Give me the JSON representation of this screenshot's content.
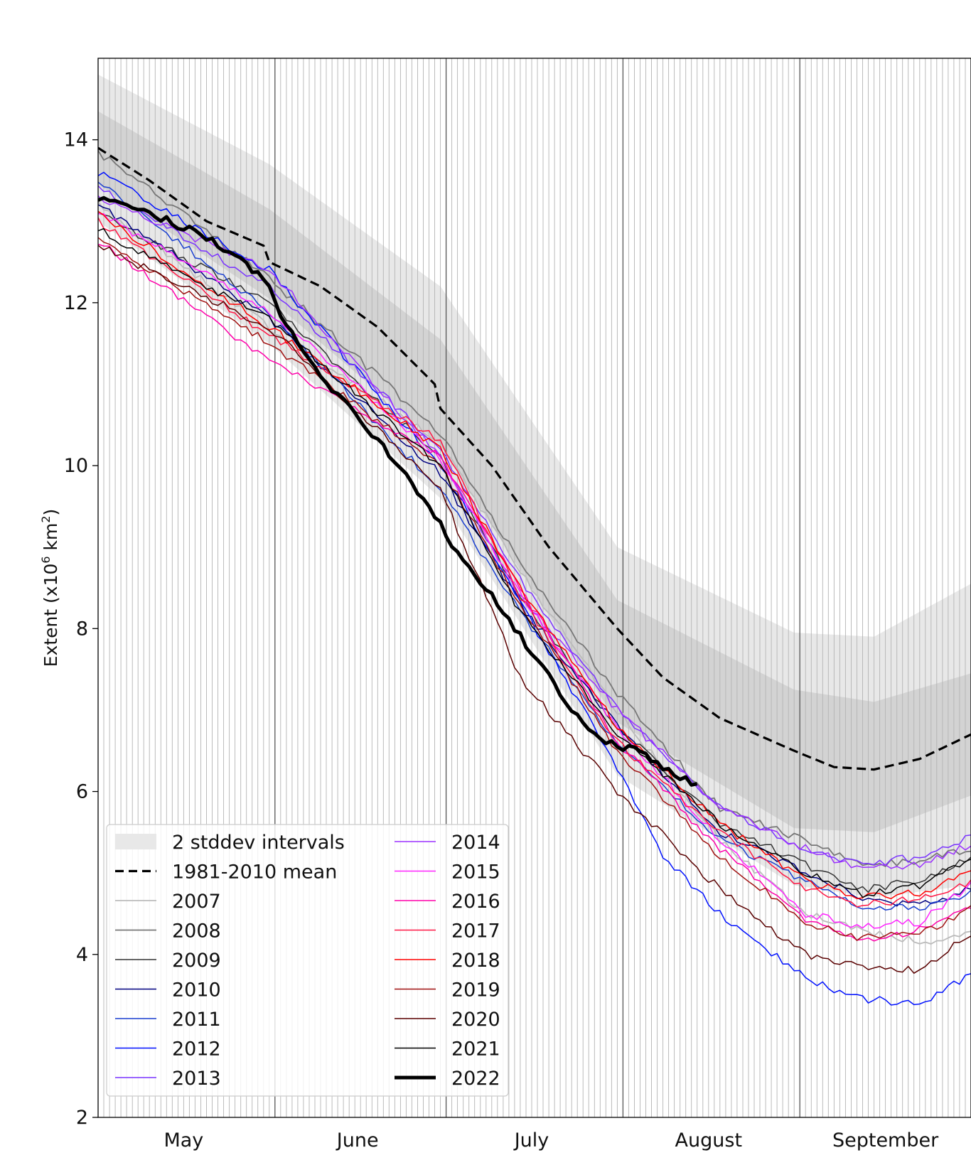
{
  "chart_data": {
    "type": "line",
    "ylabel": "Extent (x10",
    "ylabel_sup": "6",
    "ylabel_unit": " km",
    "ylabel_unit_sup": "2",
    "ylabel_close": ")",
    "ylim": [
      2,
      15
    ],
    "yticks": [
      "2",
      "4",
      "6",
      "8",
      "10",
      "12",
      "14"
    ],
    "xlim_day": [
      1,
      154
    ],
    "months": [
      {
        "label": "May",
        "start_day": 1,
        "end_day": 31
      },
      {
        "label": "June",
        "start_day": 32,
        "end_day": 61
      },
      {
        "label": "July",
        "start_day": 62,
        "end_day": 92
      },
      {
        "label": "August",
        "start_day": 93,
        "end_day": 123
      },
      {
        "label": "September",
        "start_day": 124,
        "end_day": 154
      }
    ],
    "grid": "daily vertical lines, darker lines at month boundaries",
    "legend_position": "lower-left",
    "envelope": {
      "name": "2 stddev intervals",
      "x": [
        1,
        31,
        61,
        92,
        123,
        137,
        154
      ],
      "mean": [
        13.9,
        12.6,
        10.9,
        7.6,
        6.4,
        6.3,
        6.7
      ],
      "inner_half": [
        0.45,
        0.55,
        0.65,
        0.75,
        0.85,
        0.8,
        0.75
      ],
      "outer_half": [
        0.9,
        1.1,
        1.3,
        1.4,
        1.55,
        1.6,
        1.85
      ],
      "inner_color": "#d3d3d3",
      "outer_color": "#e8e8e8"
    },
    "series": [
      {
        "name": "1981-2010 mean",
        "color": "#000000",
        "style": "dashed",
        "width": 3.2,
        "x": [
          1,
          10,
          20,
          30,
          31,
          40,
          50,
          60,
          61,
          70,
          80,
          92,
          100,
          110,
          123,
          130,
          137,
          145,
          154
        ],
        "y": [
          13.9,
          13.5,
          13.0,
          12.7,
          12.5,
          12.2,
          11.7,
          11.0,
          10.7,
          10.0,
          9.0,
          8.0,
          7.4,
          6.9,
          6.5,
          6.3,
          6.27,
          6.4,
          6.7
        ]
      },
      {
        "name": "2007",
        "color": "#bbbbbb",
        "width": 1.8,
        "x": [
          1,
          31,
          61,
          75,
          92,
          110,
          125,
          135,
          145,
          154
        ],
        "y": [
          13.2,
          11.7,
          10.3,
          8.7,
          7.0,
          5.4,
          4.5,
          4.3,
          4.15,
          4.25
        ]
      },
      {
        "name": "2008",
        "color": "#777777",
        "width": 1.8,
        "x": [
          1,
          31,
          61,
          75,
          92,
          110,
          125,
          135,
          145,
          154
        ],
        "y": [
          13.85,
          12.3,
          10.4,
          8.8,
          7.2,
          5.8,
          5.4,
          5.1,
          5.15,
          5.3
        ]
      },
      {
        "name": "2009",
        "color": "#333333",
        "width": 1.5,
        "x": [
          1,
          31,
          61,
          75,
          92,
          110,
          125,
          135,
          145,
          154
        ],
        "y": [
          13.1,
          12.0,
          10.1,
          8.4,
          6.8,
          5.6,
          5.1,
          4.8,
          4.9,
          5.2
        ]
      },
      {
        "name": "2010",
        "color": "#000080",
        "width": 1.5,
        "x": [
          1,
          31,
          61,
          75,
          92,
          110,
          125,
          135,
          145,
          154
        ],
        "y": [
          13.2,
          11.8,
          9.9,
          8.3,
          6.8,
          5.5,
          5.0,
          4.7,
          4.6,
          4.8
        ]
      },
      {
        "name": "2011",
        "color": "#1a3fd0",
        "width": 1.5,
        "x": [
          1,
          31,
          61,
          75,
          92,
          110,
          125,
          135,
          145,
          154
        ],
        "y": [
          13.5,
          11.9,
          9.7,
          8.2,
          6.6,
          5.4,
          4.9,
          4.6,
          4.55,
          4.75
        ]
      },
      {
        "name": "2012",
        "color": "#0010ff",
        "width": 1.5,
        "x": [
          1,
          31,
          61,
          75,
          92,
          100,
          110,
          125,
          135,
          145,
          154
        ],
        "y": [
          13.6,
          12.4,
          10.0,
          8.3,
          6.3,
          5.2,
          4.5,
          3.7,
          3.45,
          3.4,
          3.75
        ]
      },
      {
        "name": "2013",
        "color": "#7a33ff",
        "width": 1.5,
        "x": [
          1,
          31,
          61,
          75,
          92,
          110,
          125,
          135,
          145,
          154
        ],
        "y": [
          13.4,
          12.2,
          10.2,
          8.6,
          7.0,
          5.8,
          5.3,
          5.1,
          5.2,
          5.45
        ]
      },
      {
        "name": "2014",
        "color": "#9b30ff",
        "width": 1.5,
        "x": [
          1,
          31,
          61,
          75,
          92,
          110,
          125,
          135,
          145,
          154
        ],
        "y": [
          13.3,
          12.4,
          10.1,
          8.4,
          7.0,
          5.8,
          5.3,
          5.05,
          5.1,
          5.35
        ]
      },
      {
        "name": "2015",
        "color": "#ff22ff",
        "width": 1.5,
        "x": [
          1,
          31,
          61,
          75,
          92,
          110,
          125,
          135,
          145,
          154
        ],
        "y": [
          13.1,
          11.9,
          10.1,
          8.4,
          6.8,
          5.4,
          4.5,
          4.35,
          4.4,
          4.85
        ]
      },
      {
        "name": "2016",
        "color": "#ff00aa",
        "width": 1.5,
        "x": [
          1,
          31,
          61,
          75,
          92,
          110,
          125,
          135,
          145,
          154
        ],
        "y": [
          12.75,
          11.3,
          10.1,
          8.5,
          6.6,
          5.3,
          4.4,
          4.15,
          4.3,
          4.6
        ]
      },
      {
        "name": "2017",
        "color": "#ff1744",
        "width": 1.5,
        "x": [
          1,
          31,
          61,
          75,
          92,
          110,
          125,
          135,
          145,
          154
        ],
        "y": [
          13.0,
          11.6,
          10.3,
          8.4,
          6.6,
          5.5,
          4.8,
          4.6,
          4.7,
          4.9
        ]
      },
      {
        "name": "2018",
        "color": "#ff0000",
        "width": 1.5,
        "x": [
          1,
          31,
          61,
          75,
          92,
          110,
          125,
          135,
          145,
          154
        ],
        "y": [
          13.1,
          11.7,
          10.2,
          8.5,
          6.8,
          5.6,
          4.9,
          4.7,
          4.75,
          5.0
        ]
      },
      {
        "name": "2019",
        "color": "#a01010",
        "width": 1.5,
        "x": [
          1,
          31,
          61,
          75,
          92,
          110,
          125,
          135,
          145,
          154
        ],
        "y": [
          12.8,
          11.5,
          10.0,
          8.3,
          6.5,
          5.2,
          4.4,
          4.2,
          4.25,
          4.55
        ]
      },
      {
        "name": "2020",
        "color": "#5a0000",
        "width": 1.5,
        "x": [
          1,
          31,
          61,
          75,
          92,
          110,
          125,
          135,
          145,
          154
        ],
        "y": [
          12.7,
          11.7,
          9.7,
          7.4,
          6.0,
          4.8,
          4.0,
          3.85,
          3.8,
          4.25
        ]
      },
      {
        "name": "2021",
        "color": "#000000",
        "width": 1.5,
        "x": [
          1,
          31,
          61,
          75,
          92,
          110,
          125,
          135,
          145,
          154
        ],
        "y": [
          12.9,
          11.8,
          10.0,
          8.2,
          6.7,
          5.6,
          5.0,
          4.75,
          4.85,
          5.2
        ]
      },
      {
        "name": "2022",
        "color": "#000000",
        "width": 5,
        "x": [
          1,
          10,
          20,
          30,
          35,
          40,
          45,
          50,
          55,
          60,
          65,
          70,
          75,
          80,
          85,
          90,
          95,
          100,
          106
        ],
        "y": [
          13.3,
          13.1,
          12.8,
          12.3,
          11.6,
          11.1,
          10.7,
          10.3,
          9.9,
          9.4,
          8.8,
          8.4,
          7.9,
          7.4,
          6.9,
          6.6,
          6.5,
          6.3,
          6.07
        ]
      }
    ]
  }
}
